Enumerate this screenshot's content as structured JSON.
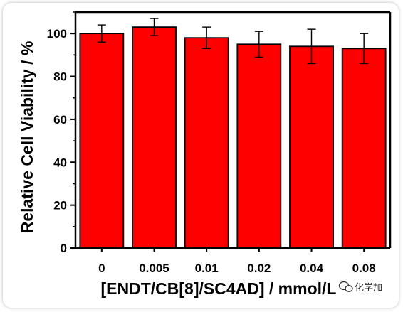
{
  "chart_data": {
    "type": "bar",
    "categories": [
      "0",
      "0.005",
      "0.01",
      "0.02",
      "0.04",
      "0.08"
    ],
    "values": [
      100,
      103,
      98,
      95,
      94,
      93
    ],
    "errors": [
      4,
      4,
      5,
      6,
      8,
      7
    ],
    "xlabel": "[ENDT/CB[8]/SC4AD] / mmol/L",
    "ylabel": "Relative Cell Viability / %",
    "ylim": [
      0,
      110
    ],
    "yticks": [
      0,
      20,
      40,
      60,
      80,
      100
    ],
    "grid": false,
    "bar_color": "#ff0000",
    "edge_color": "#000000"
  },
  "watermark": {
    "text": "化学加",
    "icon": "wechat-bubble-icon"
  }
}
